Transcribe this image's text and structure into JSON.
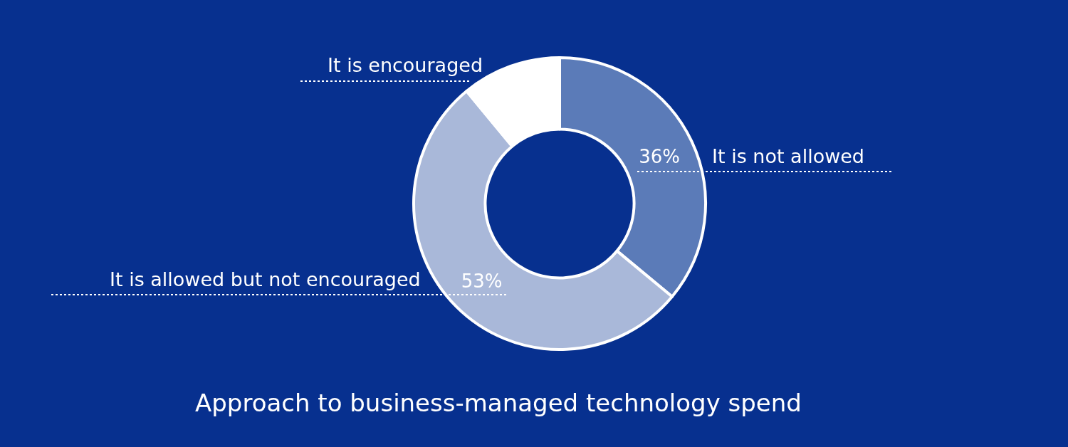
{
  "chart_data": {
    "type": "donut",
    "title": "Approach to business-managed technology spend",
    "categories": [
      "It is not allowed",
      "It is allowed but not encouraged",
      "It is encouraged"
    ],
    "values": [
      36,
      53,
      11
    ],
    "colors": [
      "#5b7bb8",
      "#a9b8d9",
      "#ffffff"
    ],
    "value_labels": [
      "36%",
      "53%",
      null
    ],
    "legend": false
  }
}
